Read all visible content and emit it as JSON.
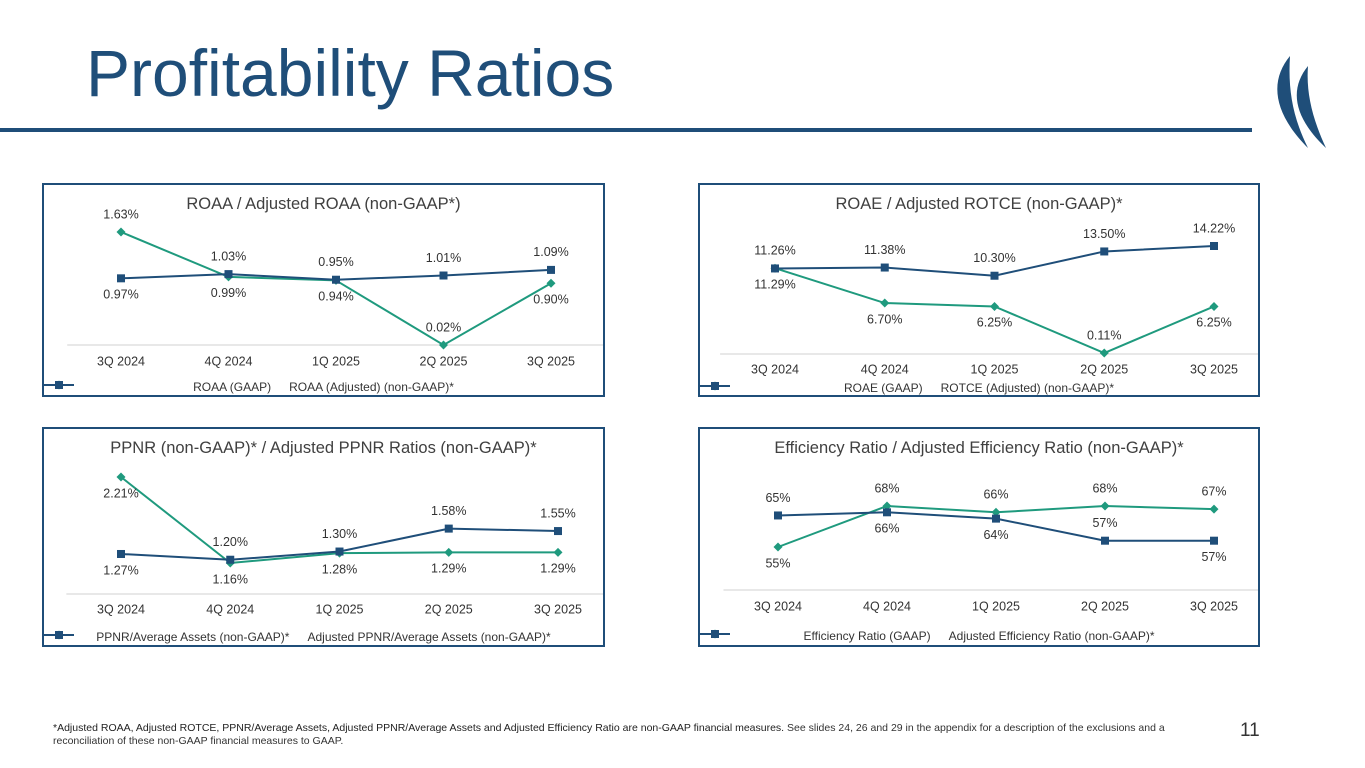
{
  "title": "Profitability Ratios",
  "footnote": {
    "bold": "*Adjusted ROAA, Adjusted ROTCE, PPNR/Average Assets, Adjusted PPNR/Average Assets and Adjusted Efficiency Ratio are non-GAAP financial measures.",
    "text": "See slides 24, 26 and 29 in the appendix for a description of the exclusions and a reconciliation of these non-GAAP financial measures to GAAP."
  },
  "page_number": "11",
  "chart_data": [
    {
      "type": "line",
      "title": "ROAA / Adjusted ROAA (non-GAAP*)",
      "categories": [
        "3Q 2024",
        "4Q 2024",
        "1Q 2025",
        "2Q 2025",
        "3Q 2025"
      ],
      "series": [
        {
          "name": "ROAA (GAAP)",
          "color": "#1f9a7e",
          "marker": "diamond",
          "values": [
            1.63,
            0.99,
            0.94,
            0.02,
            0.9
          ],
          "value_labels": [
            "1.63%",
            "0.99%",
            "0.94%",
            "0.02%",
            "0.90%"
          ]
        },
        {
          "name": "ROAA (Adjusted) (non-GAAP)*",
          "color": "#1f4e79",
          "marker": "square",
          "values": [
            0.97,
            1.03,
            0.95,
            1.01,
            1.09
          ],
          "value_labels": [
            "0.97%",
            "1.03%",
            "0.95%",
            "1.01%",
            "1.09%"
          ]
        }
      ]
    },
    {
      "type": "line",
      "title": "ROAE / Adjusted ROTCE (non-GAAP)*",
      "categories": [
        "3Q 2024",
        "4Q 2024",
        "1Q 2025",
        "2Q 2025",
        "3Q 2025"
      ],
      "series": [
        {
          "name": "ROAE (GAAP)",
          "color": "#1f9a7e",
          "marker": "diamond",
          "values": [
            11.29,
            6.7,
            6.25,
            0.11,
            6.25
          ],
          "value_labels": [
            "11.29%",
            "6.70%",
            "6.25%",
            "0.11%",
            "6.25%"
          ]
        },
        {
          "name": "ROTCE (Adjusted) (non-GAAP)*",
          "color": "#1f4e79",
          "marker": "square",
          "values": [
            11.26,
            11.38,
            10.3,
            13.5,
            14.22
          ],
          "value_labels": [
            "11.26%",
            "11.38%",
            "10.30%",
            "13.50%",
            "14.22%"
          ]
        }
      ]
    },
    {
      "type": "line",
      "title": "PPNR (non-GAAP)* / Adjusted PPNR Ratios (non-GAAP)*",
      "categories": [
        "3Q 2024",
        "4Q 2024",
        "1Q 2025",
        "2Q 2025",
        "3Q 2025"
      ],
      "series": [
        {
          "name": "PPNR/Average Assets (non-GAAP)*",
          "color": "#1f9a7e",
          "marker": "diamond",
          "values": [
            2.21,
            1.16,
            1.28,
            1.29,
            1.29
          ],
          "value_labels": [
            "2.21%",
            "1.16%",
            "1.28%",
            "1.29%",
            "1.29%"
          ]
        },
        {
          "name": "Adjusted PPNR/Average Assets (non-GAAP)*",
          "color": "#1f4e79",
          "marker": "square",
          "values": [
            1.27,
            1.2,
            1.3,
            1.58,
            1.55
          ],
          "value_labels": [
            "1.27%",
            "1.20%",
            "1.30%",
            "1.58%",
            "1.55%"
          ]
        }
      ]
    },
    {
      "type": "line",
      "title": "Efficiency Ratio / Adjusted Efficiency Ratio (non-GAAP)*",
      "categories": [
        "3Q 2024",
        "4Q 2024",
        "1Q 2025",
        "2Q 2025",
        "3Q 2025"
      ],
      "series": [
        {
          "name": "Efficiency Ratio (GAAP)",
          "color": "#1f9a7e",
          "marker": "diamond",
          "values": [
            55,
            68,
            66,
            68,
            67
          ],
          "value_labels": [
            "55%",
            "68%",
            "66%",
            "68%",
            "67%"
          ]
        },
        {
          "name": "Adjusted Efficiency Ratio (non-GAAP)*",
          "color": "#1f4e79",
          "marker": "square",
          "values": [
            65,
            66,
            64,
            57,
            57
          ],
          "value_labels": [
            "65%",
            "66%",
            "64%",
            "57%",
            "57%"
          ]
        }
      ]
    }
  ]
}
